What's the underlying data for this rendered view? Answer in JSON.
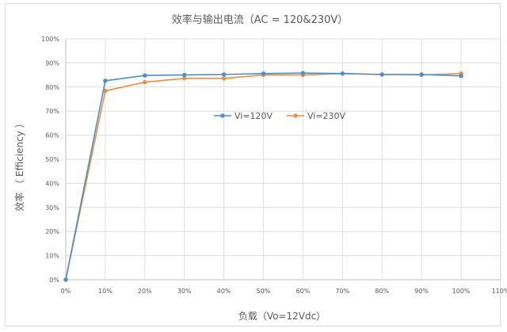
{
  "chart_data": {
    "type": "line",
    "title": "效率与输出电流（AC = 120&230V）",
    "xlabel": "负载（Vo=12Vdc）",
    "ylabel": "效率 （ Efficiency ）",
    "x_ticks": [
      "0%",
      "10%",
      "20%",
      "30%",
      "40%",
      "50%",
      "60%",
      "70%",
      "80%",
      "90%",
      "100%",
      "110%"
    ],
    "y_ticks": [
      "0%",
      "10%",
      "20%",
      "30%",
      "40%",
      "50%",
      "60%",
      "70%",
      "80%",
      "90%",
      "100%"
    ],
    "xlim": [
      0,
      110
    ],
    "ylim": [
      0,
      100
    ],
    "grid": true,
    "legend_position": "center",
    "x": [
      0,
      10,
      20,
      30,
      40,
      50,
      60,
      70,
      80,
      90,
      100
    ],
    "series": [
      {
        "name": "Vi=120V",
        "color": "#4a8fd1",
        "values": [
          0,
          82.6,
          84.8,
          85.0,
          85.2,
          85.6,
          85.8,
          85.6,
          85.2,
          85.2,
          84.6
        ]
      },
      {
        "name": "Vi=230V",
        "color": "#ed8f3c",
        "values": [
          0,
          78.4,
          82.0,
          83.6,
          83.6,
          85.0,
          85.0,
          85.6,
          85.2,
          85.0,
          85.6
        ]
      }
    ]
  }
}
